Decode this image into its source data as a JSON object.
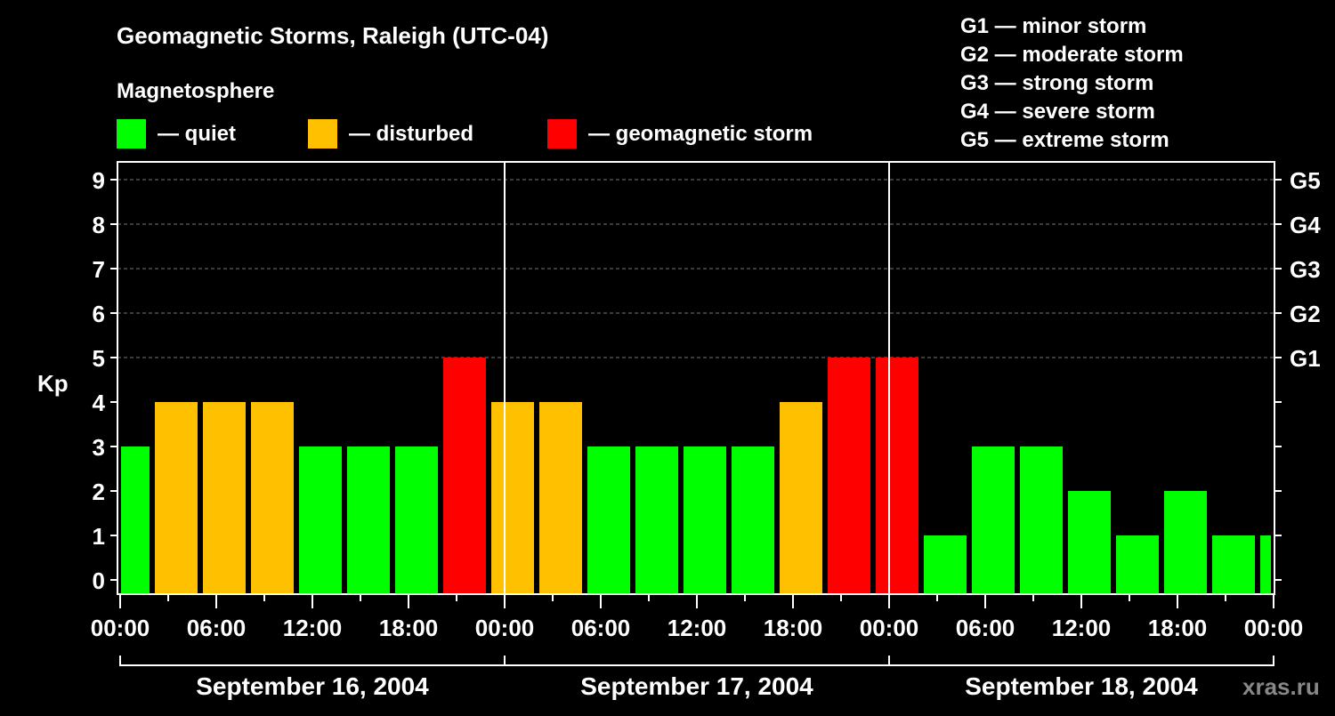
{
  "chart_data": {
    "type": "bar",
    "title": "Geomagnetic Storms, Raleigh (UTC-04)",
    "legend_title": "Magnetosphere",
    "legend": [
      {
        "label": "— quiet",
        "color": "#00ff00"
      },
      {
        "label": "— disturbed",
        "color": "#ffc000"
      },
      {
        "label": "— geomagnetic storm",
        "color": "#ff0000"
      }
    ],
    "g_scale": [
      "G1 — minor storm",
      "G2 — moderate storm",
      "G3 — strong storm",
      "G4 — severe storm",
      "G5 — extreme storm"
    ],
    "ylabel": "Kp",
    "ylim": [
      0,
      9
    ],
    "y_ticks": [
      "0",
      "1",
      "2",
      "3",
      "4",
      "5",
      "6",
      "7",
      "8",
      "9"
    ],
    "right_ticks": [
      {
        "kp": 5,
        "label": "G1"
      },
      {
        "kp": 6,
        "label": "G2"
      },
      {
        "kp": 7,
        "label": "G3"
      },
      {
        "kp": 8,
        "label": "G4"
      },
      {
        "kp": 9,
        "label": "G5"
      }
    ],
    "x_unit": "hours since Sep 16 00:00 local",
    "x_range": [
      0,
      72
    ],
    "x_tick_labels": [
      "00:00",
      "06:00",
      "12:00",
      "18:00",
      "00:00",
      "06:00",
      "12:00",
      "18:00",
      "00:00",
      "06:00",
      "12:00",
      "18:00",
      "00:00"
    ],
    "dates": [
      "September 16, 2004",
      "September 17, 2004",
      "September 18, 2004"
    ],
    "bars": [
      {
        "start": -1,
        "end": 2,
        "kp": 3
      },
      {
        "start": 2,
        "end": 5,
        "kp": 4
      },
      {
        "start": 5,
        "end": 8,
        "kp": 4
      },
      {
        "start": 8,
        "end": 11,
        "kp": 4
      },
      {
        "start": 11,
        "end": 14,
        "kp": 3
      },
      {
        "start": 14,
        "end": 17,
        "kp": 3
      },
      {
        "start": 17,
        "end": 20,
        "kp": 3
      },
      {
        "start": 20,
        "end": 23,
        "kp": 5
      },
      {
        "start": 23,
        "end": 26,
        "kp": 4
      },
      {
        "start": 26,
        "end": 29,
        "kp": 4
      },
      {
        "start": 29,
        "end": 32,
        "kp": 3
      },
      {
        "start": 32,
        "end": 35,
        "kp": 3
      },
      {
        "start": 35,
        "end": 38,
        "kp": 3
      },
      {
        "start": 38,
        "end": 41,
        "kp": 3
      },
      {
        "start": 41,
        "end": 44,
        "kp": 4
      },
      {
        "start": 44,
        "end": 47,
        "kp": 5
      },
      {
        "start": 47,
        "end": 50,
        "kp": 5
      },
      {
        "start": 50,
        "end": 53,
        "kp": 1
      },
      {
        "start": 53,
        "end": 56,
        "kp": 3
      },
      {
        "start": 56,
        "end": 59,
        "kp": 3
      },
      {
        "start": 59,
        "end": 62,
        "kp": 2
      },
      {
        "start": 62,
        "end": 65,
        "kp": 1
      },
      {
        "start": 65,
        "end": 68,
        "kp": 2
      },
      {
        "start": 68,
        "end": 71,
        "kp": 1
      },
      {
        "start": 71,
        "end": 74,
        "kp": 1
      }
    ],
    "colors": {
      "quiet": "#00ff00",
      "disturbed": "#ffc000",
      "storm": "#ff0000"
    },
    "watermark": "xras.ru"
  }
}
